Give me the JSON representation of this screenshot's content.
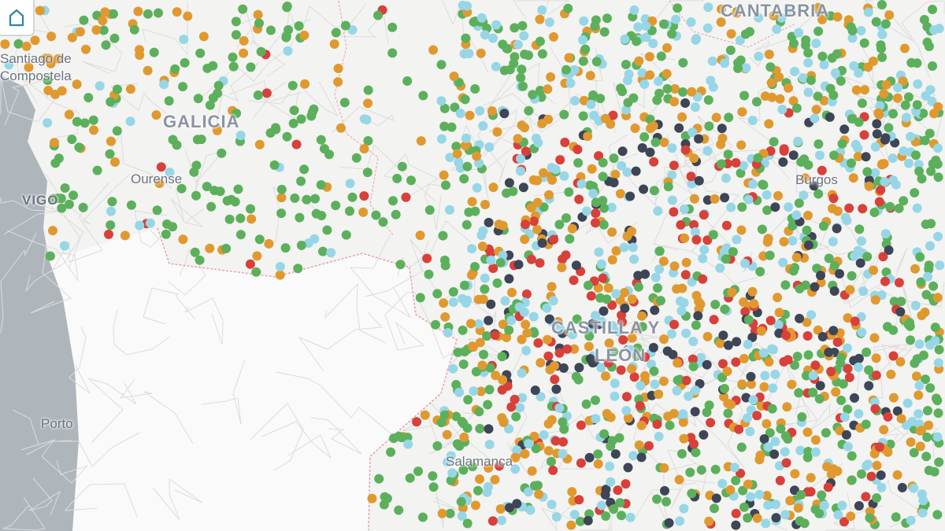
{
  "map": {
    "region_labels": [
      "CANTABRIA",
      "GALICIA",
      "CASTILLA Y",
      "LEÓN"
    ],
    "city_labels": [
      "Santiago de",
      "Compostela",
      "Ourense",
      "VIGO",
      "Porto",
      "Salamanca",
      "Burgos"
    ],
    "home_button_icon": "home-icon",
    "point_colors": {
      "green": "#5cb05c",
      "orange": "#e0992f",
      "light_blue": "#97d6e6",
      "red": "#d8403a",
      "dark": "#3d4556"
    },
    "land_color": "#f3f3f2",
    "ocean_color": "#aeb6bc",
    "portugal_color": "#fafafa",
    "border_color": "#e4a3ad"
  }
}
